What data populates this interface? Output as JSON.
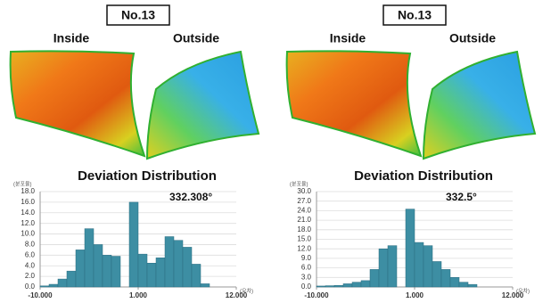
{
  "panels": [
    {
      "label": "No.13",
      "inside": "Inside",
      "outside": "Outside"
    },
    {
      "label": "No.13",
      "inside": "Inside",
      "outside": "Outside"
    }
  ],
  "chart_data": [
    {
      "type": "histogram",
      "title": "Deviation Distribution",
      "annotation": "332.308°",
      "y_label": "(분포율)",
      "x_label": "(오차)",
      "color": "#3d8ea3",
      "bins": [
        -10,
        -9,
        -8,
        -7,
        -6,
        -5,
        -4,
        -3,
        -2,
        -1,
        0,
        1,
        2,
        3,
        4,
        5,
        6,
        7,
        8,
        9
      ],
      "values": [
        0.2,
        0.5,
        1.5,
        3,
        7,
        11,
        8,
        6,
        5.8,
        0,
        16,
        6.2,
        4.5,
        5.5,
        9.5,
        8.8,
        7.5,
        4.3,
        0.6
      ],
      "xlim": [
        -10,
        12
      ],
      "xticks": [
        {
          "value": -10,
          "label": "-10.000"
        },
        {
          "value": 1,
          "label": "1.000"
        },
        {
          "value": 12,
          "label": "12.000"
        }
      ],
      "ylim": [
        0,
        18
      ],
      "yticks": [
        {
          "value": 0,
          "label": "0.0"
        },
        {
          "value": 2,
          "label": "2.0"
        },
        {
          "value": 4,
          "label": "4.0"
        },
        {
          "value": 6,
          "label": "6.0"
        },
        {
          "value": 8,
          "label": "8.0"
        },
        {
          "value": 10,
          "label": "10.0"
        },
        {
          "value": 12,
          "label": "12.0"
        },
        {
          "value": 14,
          "label": "14.0"
        },
        {
          "value": 16,
          "label": "16.0"
        },
        {
          "value": 18,
          "label": "18.0"
        }
      ],
      "grid": true
    },
    {
      "type": "histogram",
      "title": "Deviation Distribution",
      "annotation": "332.5°",
      "y_label": "(분포율)",
      "x_label": "(오차)",
      "color": "#3d8ea3",
      "bins": [
        -10,
        -9,
        -8,
        -7,
        -6,
        -5,
        -4,
        -3,
        -2,
        -1,
        0,
        1,
        2,
        3,
        4,
        5,
        6,
        7,
        8
      ],
      "values": [
        0.3,
        0.4,
        0.5,
        1,
        1.5,
        2,
        5.5,
        12,
        13,
        0,
        24.5,
        14,
        13,
        8,
        5.5,
        3,
        1.5,
        0.8
      ],
      "xlim": [
        -10,
        12
      ],
      "xticks": [
        {
          "value": -10,
          "label": "-10.000"
        },
        {
          "value": 1,
          "label": "1.000"
        },
        {
          "value": 12,
          "label": "12.000"
        }
      ],
      "ylim": [
        0,
        30
      ],
      "yticks": [
        {
          "value": 0,
          "label": "0.0"
        },
        {
          "value": 3,
          "label": "3.0"
        },
        {
          "value": 6,
          "label": "6.0"
        },
        {
          "value": 9,
          "label": "9.0"
        },
        {
          "value": 12,
          "label": "12.0"
        },
        {
          "value": 15,
          "label": "15.0"
        },
        {
          "value": 18,
          "label": "18.0"
        },
        {
          "value": 21,
          "label": "21.0"
        },
        {
          "value": 24,
          "label": "24.0"
        },
        {
          "value": 27,
          "label": "27.0"
        },
        {
          "value": 30,
          "label": "30.0"
        }
      ],
      "grid": true
    }
  ]
}
